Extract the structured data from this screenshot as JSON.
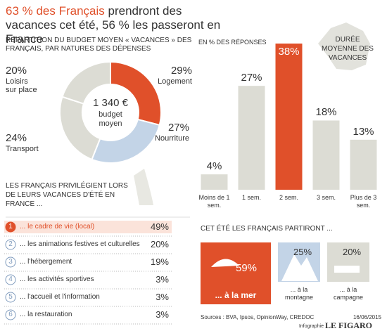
{
  "header": {
    "title_highlight": "63 % des Français",
    "title_rest": "prendront des vacances cet été, 56 % les passeront en France"
  },
  "chart_data": [
    {
      "type": "pie",
      "title": "RÉPARTITION DU BUDGET MOYEN « VACANCES » DES FRANÇAIS, PAR NATURES DES DÉPENSES",
      "center_value": "1 340 €",
      "center_label": "budget moyen",
      "categories": [
        "Logement",
        "Nourriture",
        "Transport",
        "Loisirs sur place"
      ],
      "values": [
        29,
        27,
        24,
        20
      ],
      "value_labels": [
        "29%",
        "27%",
        "24%",
        "20%"
      ],
      "colors": [
        "#e0502a",
        "#c3d4e7",
        "#dcdcd4",
        "#dcdcd4"
      ]
    },
    {
      "type": "bar",
      "title": "DURÉE MOYENNE DES VACANCES",
      "subtitle": "EN % DES RÉPONSES",
      "categories": [
        "Moins de 1 sem.",
        "1 sem.",
        "2 sem.",
        "3 sem.",
        "Plus de 3 sem."
      ],
      "values": [
        4,
        27,
        38,
        18,
        13
      ],
      "value_labels": [
        "4%",
        "27%",
        "38%",
        "18%",
        "13%"
      ],
      "colors": [
        "#dcdcd4",
        "#dcdcd4",
        "#e0502a",
        "#dcdcd4",
        "#dcdcd4"
      ],
      "ylim": [
        0,
        40
      ]
    }
  ],
  "preferences": {
    "title": "LES FRANÇAIS PRIVILÉGIENT LORS DE LEURS VACANCES D'ÉTÉ EN FRANCE ...",
    "items": [
      {
        "rank": "1",
        "label": "... le cadre de vie (local)",
        "value": "49%"
      },
      {
        "rank": "2",
        "label": "... les animations festives et culturelles",
        "value": "20%"
      },
      {
        "rank": "3",
        "label": "... l'hébergement",
        "value": "19%"
      },
      {
        "rank": "4",
        "label": "... les activités sportives",
        "value": "3%"
      },
      {
        "rank": "5",
        "label": "... l'accueil et l'information",
        "value": "3%"
      },
      {
        "rank": "6",
        "label": "... la restauration",
        "value": "3%"
      }
    ]
  },
  "destinations": {
    "title": "CET ÉTÉ LES FRANÇAIS PARTIRONT ...",
    "items": [
      {
        "label": "... à la mer",
        "value": "59%"
      },
      {
        "label": "... à la montagne",
        "value": "25%"
      },
      {
        "label": "... à la campagne",
        "value": "20%"
      }
    ]
  },
  "footer": {
    "sources": "Sources : BVA, Ipsos, OpinionWay, CREDOC",
    "date": "16/06/2015",
    "credit": "Infographie",
    "brand": "LE FIGARO"
  }
}
